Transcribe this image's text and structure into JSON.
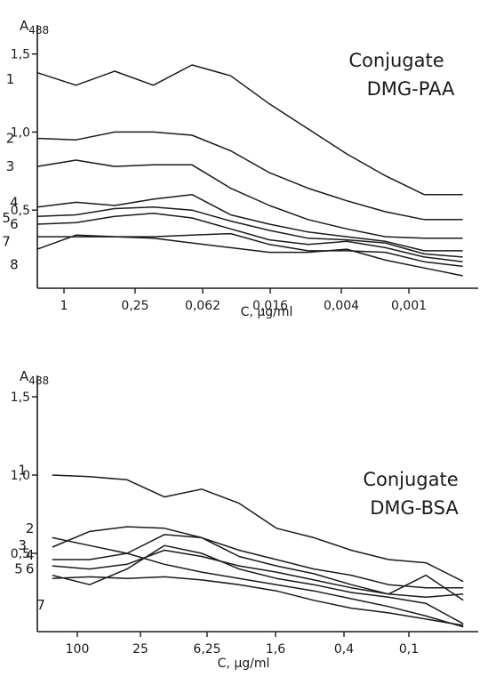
{
  "chart_data": [
    {
      "type": "line",
      "title": "Conjugate DMG-PAA",
      "title_lines": [
        "Conjugate",
        "DMG-PAA"
      ],
      "ylabel": "A",
      "ylabel_sub": "488",
      "xlabel": "C, μg/ml",
      "x_ticks": [
        "1",
        "0,25",
        "0,062",
        "0,016",
        "0,004",
        "0,001"
      ],
      "y_ticks": [
        "1,5",
        "1,0",
        "0,5"
      ],
      "y_tick_values": [
        1.5,
        1.0,
        0.5
      ],
      "ylim": [
        0,
        1.8
      ],
      "xlim": [
        0,
        5.7
      ],
      "legend": "none",
      "grid": false,
      "x": [
        0,
        0.5,
        1,
        1.5,
        2,
        2.5,
        3,
        3.5,
        4,
        4.5,
        5,
        5.5
      ],
      "series": [
        {
          "name": "1",
          "label_pos": [
            -0.35,
            1.34
          ],
          "values": [
            1.38,
            1.3,
            1.39,
            1.3,
            1.43,
            1.36,
            1.18,
            1.02,
            0.86,
            0.72,
            0.6,
            0.6
          ]
        },
        {
          "name": "2",
          "label_pos": [
            -0.35,
            0.96
          ],
          "values": [
            0.96,
            0.95,
            1.0,
            1.0,
            0.98,
            0.88,
            0.74,
            0.64,
            0.56,
            0.49,
            0.44,
            0.44
          ]
        },
        {
          "name": "3",
          "label_pos": [
            -0.35,
            0.78
          ],
          "values": [
            0.78,
            0.82,
            0.78,
            0.79,
            0.79,
            0.64,
            0.53,
            0.44,
            0.38,
            0.33,
            0.32,
            0.32
          ]
        },
        {
          "name": "4",
          "label_pos": [
            -0.3,
            0.55
          ],
          "values": [
            0.52,
            0.55,
            0.53,
            0.57,
            0.6,
            0.47,
            0.41,
            0.36,
            0.33,
            0.3,
            0.24,
            0.24
          ]
        },
        {
          "name": "5",
          "label_pos": [
            -0.4,
            0.45
          ],
          "values": [
            0.46,
            0.47,
            0.51,
            0.52,
            0.5,
            0.43,
            0.37,
            0.32,
            0.31,
            0.29,
            0.22,
            0.2
          ]
        },
        {
          "name": "6",
          "label_pos": [
            -0.3,
            0.41
          ],
          "values": [
            0.41,
            0.42,
            0.46,
            0.48,
            0.45,
            0.38,
            0.31,
            0.28,
            0.3,
            0.26,
            0.2,
            0.17
          ]
        },
        {
          "name": "7",
          "label_pos": [
            -0.4,
            0.3
          ],
          "values": [
            0.33,
            0.33,
            0.33,
            0.33,
            0.34,
            0.35,
            0.28,
            0.24,
            0.24,
            0.23,
            0.17,
            0.14
          ]
        },
        {
          "name": "8",
          "label_pos": [
            -0.3,
            0.15
          ],
          "values": [
            0.25,
            0.34,
            0.33,
            0.32,
            0.29,
            0.26,
            0.23,
            0.23,
            0.25,
            0.18,
            0.13,
            0.08
          ]
        }
      ]
    },
    {
      "type": "line",
      "title": "Conjugate DMG-BSA",
      "title_lines": [
        "Conjugate",
        "DMG-BSA"
      ],
      "ylabel": "A",
      "ylabel_sub": "488",
      "xlabel": "C, μg/ml",
      "x_ticks": [
        "100",
        "25",
        "6,25",
        "1,6",
        "0,4",
        "0,1"
      ],
      "y_ticks": [
        "1,5",
        "1,0",
        "0,5"
      ],
      "y_tick_values": [
        1.5,
        1.0,
        0.5
      ],
      "ylim": [
        0,
        1.75
      ],
      "xlim": [
        -0.2,
        5.7
      ],
      "legend": "none",
      "grid": false,
      "x": [
        0,
        0.5,
        1,
        1.5,
        2,
        2.5,
        3,
        3.5,
        4,
        4.5,
        5,
        5.5
      ],
      "series": [
        {
          "name": "1",
          "label_pos": [
            -0.4,
            1.03
          ],
          "values": [
            1.0,
            0.99,
            0.97,
            0.86,
            0.91,
            0.82,
            0.66,
            0.6,
            0.52,
            0.46,
            0.44,
            0.32
          ]
        },
        {
          "name": "2",
          "label_pos": [
            -0.3,
            0.66
          ],
          "values": [
            0.6,
            0.55,
            0.5,
            0.43,
            0.38,
            0.34,
            0.3,
            0.26,
            0.21,
            0.16,
            0.1,
            0.03
          ]
        },
        {
          "name": "3",
          "label_pos": [
            -0.4,
            0.55
          ],
          "values": [
            0.54,
            0.64,
            0.67,
            0.66,
            0.6,
            0.52,
            0.46,
            0.4,
            0.36,
            0.3,
            0.28,
            0.28
          ]
        },
        {
          "name": "4",
          "label_pos": [
            -0.3,
            0.49
          ],
          "values": [
            0.46,
            0.46,
            0.5,
            0.62,
            0.6,
            0.48,
            0.42,
            0.37,
            0.3,
            0.24,
            0.36,
            0.2
          ]
        },
        {
          "name": "5",
          "label_pos": [
            -0.45,
            0.4
          ],
          "values": [
            0.42,
            0.4,
            0.43,
            0.52,
            0.48,
            0.42,
            0.38,
            0.33,
            0.28,
            0.24,
            0.22,
            0.24
          ]
        },
        {
          "name": "6",
          "label_pos": [
            -0.3,
            0.4
          ],
          "values": [
            0.36,
            0.3,
            0.4,
            0.55,
            0.5,
            0.4,
            0.34,
            0.3,
            0.25,
            0.22,
            0.18,
            0.05
          ]
        },
        {
          "name": "7",
          "label_pos": [
            -0.15,
            0.17
          ],
          "values": [
            0.34,
            0.35,
            0.34,
            0.35,
            0.33,
            0.3,
            0.26,
            0.2,
            0.15,
            0.12,
            0.08,
            0.04
          ]
        }
      ]
    }
  ]
}
